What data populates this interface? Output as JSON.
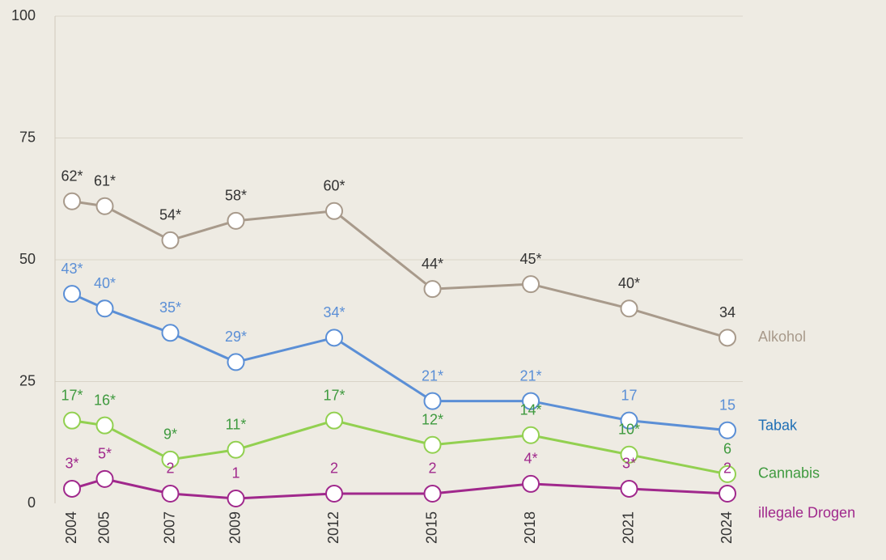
{
  "chart_data": {
    "type": "line",
    "x": [
      2004,
      2005,
      2007,
      2009,
      2012,
      2015,
      2018,
      2021,
      2024
    ],
    "xlim": [
      2003.5,
      2025
    ],
    "xticks": [
      2004,
      2005,
      2007,
      2009,
      2012,
      2015,
      2018,
      2021,
      2024
    ],
    "ylim": [
      0,
      100
    ],
    "yticks": [
      0,
      25,
      50,
      75,
      100
    ],
    "grid": true,
    "series": [
      {
        "name": "Alkohol",
        "color": "#a89a8b",
        "label_color": "#333333",
        "name_color": "#a89a8b",
        "values": [
          62,
          61,
          54,
          58,
          60,
          44,
          45,
          40,
          34
        ],
        "value_labels": [
          "62*",
          "61*",
          "54*",
          "58*",
          "60*",
          "44*",
          "45*",
          "40*",
          "34"
        ]
      },
      {
        "name": "Tabak",
        "color": "#5b8fd6",
        "label_color": "#5b8fd6",
        "name_color": "#1f6fb5",
        "values": [
          43,
          40,
          35,
          29,
          34,
          21,
          21,
          17,
          15
        ],
        "value_labels": [
          "43*",
          "40*",
          "35*",
          "29*",
          "34*",
          "21*",
          "21*",
          "17",
          "15"
        ]
      },
      {
        "name": "Cannabis",
        "color": "#92d050",
        "label_color": "#3f9a3f",
        "name_color": "#3f9a3f",
        "values": [
          17,
          16,
          9,
          11,
          17,
          12,
          14,
          10,
          6
        ],
        "value_labels": [
          "17*",
          "16*",
          "9*",
          "11*",
          "17*",
          "12*",
          "14*",
          "10*",
          "6"
        ]
      },
      {
        "name": "illegale Drogen",
        "color": "#a0288c",
        "label_color": "#a0288c",
        "name_color": "#a0288c",
        "values": [
          3,
          5,
          2,
          1,
          2,
          2,
          4,
          3,
          2
        ],
        "value_labels": [
          "3*",
          "5*",
          "2",
          "1",
          "2",
          "2",
          "4*",
          "3*",
          "2"
        ]
      }
    ]
  }
}
